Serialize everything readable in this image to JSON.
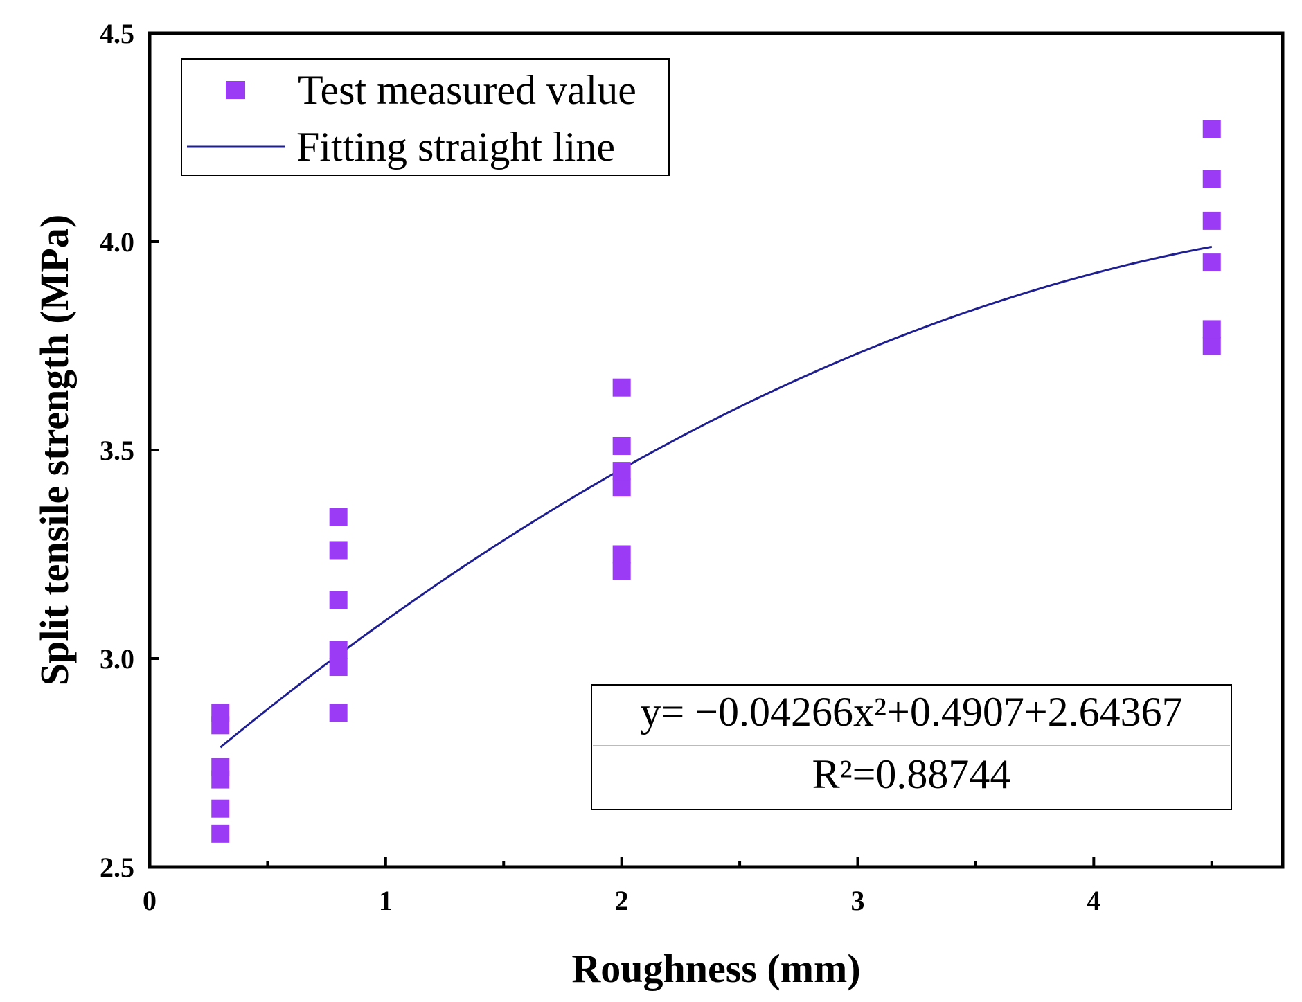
{
  "chart_data": {
    "type": "scatter",
    "title": "",
    "xlabel": "Roughness (mm)",
    "ylabel": "Split tensile strength (MPa)",
    "xlim": [
      0,
      4.8
    ],
    "ylim": [
      2.5,
      4.5
    ],
    "x_ticks": [
      0,
      1,
      2,
      3,
      4
    ],
    "x_minor_ticks": [
      0.5,
      1.5,
      2.5,
      3.5,
      4.5
    ],
    "y_ticks": [
      2.5,
      3.0,
      3.5,
      4.0,
      4.5
    ],
    "y_tick_labels": [
      "2.5",
      "3.0",
      "3.5",
      "4.0",
      "4.5"
    ],
    "x_tick_labels": [
      "0",
      "1",
      "2",
      "3",
      "4"
    ],
    "colors": {
      "marker": "#9B3BF5",
      "fit_line": "#1F1F8F",
      "axis": "#000000"
    },
    "series": [
      {
        "name": "Test measured value",
        "kind": "scatter",
        "marker": "square",
        "points": [
          {
            "x": 0.3,
            "y": 2.58
          },
          {
            "x": 0.3,
            "y": 2.64
          },
          {
            "x": 0.3,
            "y": 2.71
          },
          {
            "x": 0.3,
            "y": 2.74
          },
          {
            "x": 0.3,
            "y": 2.84
          },
          {
            "x": 0.3,
            "y": 2.87
          },
          {
            "x": 0.8,
            "y": 2.87
          },
          {
            "x": 0.8,
            "y": 2.98
          },
          {
            "x": 0.8,
            "y": 3.02
          },
          {
            "x": 0.8,
            "y": 3.14
          },
          {
            "x": 0.8,
            "y": 3.26
          },
          {
            "x": 0.8,
            "y": 3.34
          },
          {
            "x": 2.0,
            "y": 3.21
          },
          {
            "x": 2.0,
            "y": 3.25
          },
          {
            "x": 2.0,
            "y": 3.41
          },
          {
            "x": 2.0,
            "y": 3.45
          },
          {
            "x": 2.0,
            "y": 3.51
          },
          {
            "x": 2.0,
            "y": 3.65
          },
          {
            "x": 4.5,
            "y": 3.75
          },
          {
            "x": 4.5,
            "y": 3.79
          },
          {
            "x": 4.5,
            "y": 3.95
          },
          {
            "x": 4.5,
            "y": 4.05
          },
          {
            "x": 4.5,
            "y": 4.15
          },
          {
            "x": 4.5,
            "y": 4.27
          }
        ]
      },
      {
        "name": "Fitting straight line",
        "kind": "line",
        "fit": {
          "a": -0.04266,
          "b": 0.4907,
          "c": 2.64367,
          "x_start": 0.3,
          "x_end": 4.5
        }
      }
    ],
    "legend_position": "top-left",
    "annotation": {
      "equation": "y= −0.04266x²+0.4907+2.64367",
      "r_squared": "R²=0.88744",
      "position": "bottom-right"
    }
  }
}
